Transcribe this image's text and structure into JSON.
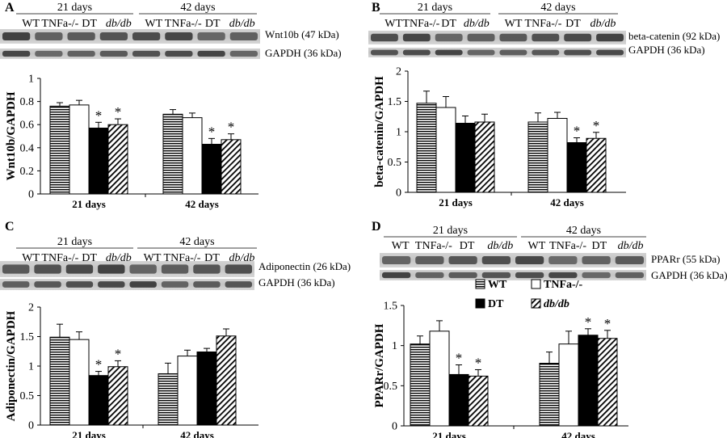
{
  "chart_data": [
    {
      "type": "bar",
      "panel": "A",
      "group_labels": [
        "21 days",
        "42 days"
      ],
      "lanes": [
        "WT",
        "TNFa-/-",
        "DT",
        "db/db"
      ],
      "lanes_italic": [
        false,
        false,
        false,
        true
      ],
      "blot_labels": [
        "Wnt10b (47 kDa)",
        "GAPDH (36 kDa)"
      ],
      "ylabel": "Wnt10b/GAPDH",
      "ylim": [
        0,
        1
      ],
      "yticks": [
        0,
        0.2,
        0.4,
        0.6,
        0.8,
        1
      ],
      "ytick_labels": [
        "0",
        "0.2",
        "0.4",
        "0.6",
        "0.8",
        "1"
      ],
      "categories": [
        "21 days",
        "42 days"
      ],
      "series": [
        {
          "name": "WT",
          "pattern": "hstripe",
          "values": [
            0.76,
            0.69
          ],
          "errors": [
            0.03,
            0.04
          ],
          "star": [
            false,
            false
          ]
        },
        {
          "name": "TNFa-/-",
          "pattern": "white",
          "values": [
            0.77,
            0.66
          ],
          "errors": [
            0.04,
            0.04
          ],
          "star": [
            false,
            false
          ]
        },
        {
          "name": "DT",
          "pattern": "black",
          "values": [
            0.57,
            0.43
          ],
          "errors": [
            0.05,
            0.05
          ],
          "star": [
            true,
            true
          ]
        },
        {
          "name": "db/db",
          "pattern": "diag",
          "values": [
            0.6,
            0.47
          ],
          "errors": [
            0.05,
            0.05
          ],
          "star": [
            true,
            true
          ]
        }
      ],
      "legend": null
    },
    {
      "type": "bar",
      "panel": "B",
      "group_labels": [
        "21 days",
        "42 days"
      ],
      "lanes": [
        "WT",
        "TNFa-/-",
        "DT",
        "db/db"
      ],
      "lanes_italic": [
        false,
        false,
        false,
        true
      ],
      "blot_labels": [
        "beta-catenin (92 kDa)",
        "GAPDH (36 kDa)"
      ],
      "ylabel": "beta-catenin/GAPDH",
      "ylim": [
        0,
        2
      ],
      "yticks": [
        0,
        0.5,
        1,
        1.5,
        2
      ],
      "ytick_labels": [
        "0",
        "0.5",
        "1",
        "1.5",
        "2"
      ],
      "categories": [
        "21 days",
        "42 days"
      ],
      "series": [
        {
          "name": "WT",
          "pattern": "hstripe",
          "values": [
            1.47,
            1.16
          ],
          "errors": [
            0.2,
            0.15
          ],
          "star": [
            false,
            false
          ]
        },
        {
          "name": "TNFa-/-",
          "pattern": "white",
          "values": [
            1.4,
            1.22
          ],
          "errors": [
            0.18,
            0.1
          ],
          "star": [
            false,
            false
          ]
        },
        {
          "name": "DT",
          "pattern": "black",
          "values": [
            1.14,
            0.82
          ],
          "errors": [
            0.12,
            0.08
          ],
          "star": [
            false,
            true
          ]
        },
        {
          "name": "db/db",
          "pattern": "diag",
          "values": [
            1.16,
            0.89
          ],
          "errors": [
            0.13,
            0.1
          ],
          "star": [
            false,
            true
          ]
        }
      ],
      "legend": null
    },
    {
      "type": "bar",
      "panel": "C",
      "group_labels": [
        "21 days",
        "42 days"
      ],
      "lanes": [
        "WT",
        "TNFa-/-",
        "DT",
        "db/db",
        "WT",
        "TNFa-/-",
        "DT",
        "db/db"
      ],
      "lanes_italic": [
        false,
        false,
        false,
        true,
        false,
        false,
        false,
        true
      ],
      "blot_labels": [
        "Adiponectin (26 kDa)",
        "GAPDH (36 kDa)"
      ],
      "ylabel": "Adiponectin/GAPDH",
      "ylim": [
        0,
        2
      ],
      "yticks": [
        0,
        0.5,
        1,
        1.5,
        2
      ],
      "ytick_labels": [
        "0",
        "0.5",
        "1",
        "1.5",
        "2"
      ],
      "categories": [
        "21 days",
        "42 days"
      ],
      "series": [
        {
          "name": "WT",
          "pattern": "hstripe",
          "values": [
            1.49,
            0.87
          ],
          "errors": [
            0.22,
            0.18
          ],
          "star": [
            false,
            false
          ]
        },
        {
          "name": "TNFa-/-",
          "pattern": "white",
          "values": [
            1.45,
            1.17
          ],
          "errors": [
            0.13,
            0.1
          ],
          "star": [
            false,
            false
          ]
        },
        {
          "name": "DT",
          "pattern": "black",
          "values": [
            0.84,
            1.24
          ],
          "errors": [
            0.07,
            0.06
          ],
          "star": [
            true,
            false
          ]
        },
        {
          "name": "db/db",
          "pattern": "diag",
          "values": [
            0.99,
            1.51
          ],
          "errors": [
            0.1,
            0.12
          ],
          "star": [
            true,
            false
          ]
        }
      ],
      "legend": null
    },
    {
      "type": "bar",
      "panel": "D",
      "group_labels": [
        "21 days",
        "42 days"
      ],
      "lanes": [
        "WT",
        "TNFa-/-",
        "DT",
        "db/db",
        "WT",
        "TNFa-/-",
        "DT",
        "db/db"
      ],
      "lanes_italic": [
        false,
        false,
        false,
        true,
        false,
        false,
        false,
        true
      ],
      "blot_labels": [
        "PPARr (55 kDa)",
        "GAPDH (36 kDa)"
      ],
      "ylabel": "PPARr/GAPDH",
      "ylim": [
        0,
        1.5
      ],
      "yticks": [
        0,
        0.5,
        1,
        1.5
      ],
      "ytick_labels": [
        "0",
        "0.5",
        "1",
        "1.5"
      ],
      "categories": [
        "21 days",
        "42 days"
      ],
      "series": [
        {
          "name": "WT",
          "pattern": "hstripe",
          "values": [
            1.02,
            0.78
          ],
          "errors": [
            0.1,
            0.14
          ],
          "star": [
            false,
            false
          ]
        },
        {
          "name": "TNFa-/-",
          "pattern": "white",
          "values": [
            1.18,
            1.02
          ],
          "errors": [
            0.13,
            0.16
          ],
          "star": [
            false,
            false
          ]
        },
        {
          "name": "DT",
          "pattern": "black",
          "values": [
            0.64,
            1.13
          ],
          "errors": [
            0.12,
            0.08
          ],
          "star": [
            true,
            true
          ]
        },
        {
          "name": "db/db",
          "pattern": "diag",
          "values": [
            0.62,
            1.09
          ],
          "errors": [
            0.08,
            0.1
          ],
          "star": [
            true,
            true
          ]
        }
      ],
      "legend": {
        "placement": "top",
        "entries": [
          {
            "label": "WT",
            "pattern": "hstripe",
            "italic": false
          },
          {
            "label": "TNFa-/-",
            "pattern": "white",
            "italic": false
          },
          {
            "label": "DT",
            "pattern": "black",
            "italic": false
          },
          {
            "label": "db/db",
            "pattern": "diag",
            "italic": true
          }
        ]
      }
    }
  ]
}
